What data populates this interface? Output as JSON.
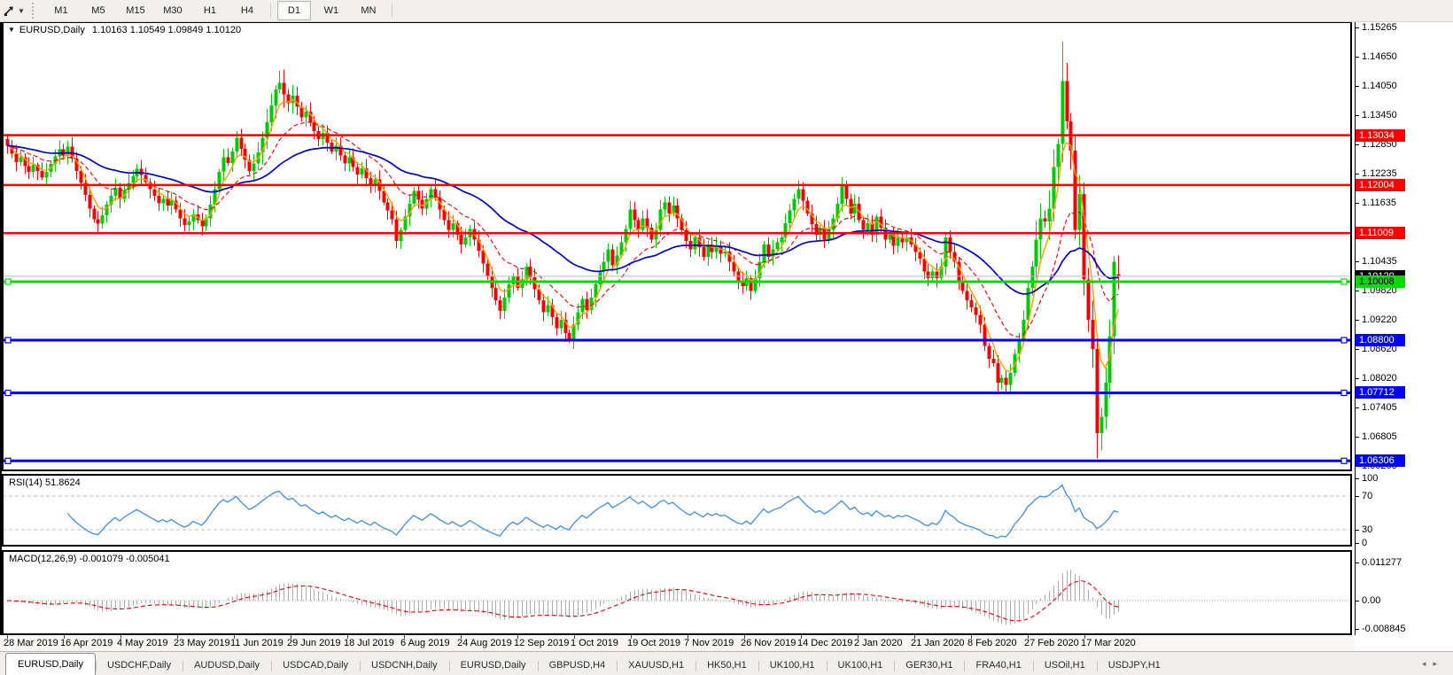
{
  "toolbar": {
    "timeframes": [
      "M1",
      "M5",
      "M15",
      "M30",
      "H1",
      "H4",
      "D1",
      "W1",
      "MN"
    ],
    "active_timeframe": "D1",
    "caret": "▼"
  },
  "chart": {
    "title_marker": "▼",
    "title_symbol": "EURUSD,Daily",
    "title_ohlc": "1.10163 1.10549 1.09849 1.10120"
  },
  "price_axis_labels": [
    1.15265,
    1.1465,
    1.1405,
    1.1345,
    1.1285,
    1.12235,
    1.11635,
    1.10435,
    1.0982,
    1.0922,
    1.0862,
    1.0802,
    1.07405,
    1.06805,
    1.06205
  ],
  "levels": [
    {
      "price": 1.13034,
      "label": "1.13034",
      "color": "#FF0000",
      "text_color": "#FFFFFF",
      "width": 2.5,
      "handles": false
    },
    {
      "price": 1.12004,
      "label": "1.12004",
      "color": "#FF0000",
      "text_color": "#FFFFFF",
      "width": 2.5,
      "handles": false
    },
    {
      "price": 1.11009,
      "label": "1.11009",
      "color": "#FF0000",
      "text_color": "#FFFFFF",
      "width": 2.5,
      "handles": false
    },
    {
      "price": 1.10008,
      "label": "1.10008",
      "color": "#00DC00",
      "text_color": "#000000",
      "width": 3,
      "handles": true
    },
    {
      "price": 1.088,
      "label": "1.08800",
      "color": "#0000FF",
      "text_color": "#FFFFFF",
      "width": 3,
      "handles": true
    },
    {
      "price": 1.07712,
      "label": "1.07712",
      "color": "#0000FF",
      "text_color": "#FFFFFF",
      "width": 3,
      "handles": true
    },
    {
      "price": 1.06306,
      "label": "1.06306",
      "color": "#0000FF",
      "text_color": "#FFFFFF",
      "width": 3,
      "handles": true
    }
  ],
  "current_price": {
    "price": 1.1012,
    "label": "1.10120",
    "line_color": "#B8B8B8",
    "bg": "#000000",
    "text_color": "#FFFFFF"
  },
  "chart_data": {
    "type": "candlestick",
    "symbol": "EURUSD",
    "period": "Daily",
    "x_axis_dates": [
      "28 Mar 2019",
      "16 Apr 2019",
      "4 May 2019",
      "23 May 2019",
      "11 Jun 2019",
      "29 Jun 2019",
      "18 Jul 2019",
      "6 Aug 2019",
      "24 Aug 2019",
      "12 Sep 2019",
      "1 Oct 2019",
      "19 Oct 2019",
      "7 Nov 2019",
      "26 Nov 2019",
      "14 Dec 2019",
      "2 Jan 2020",
      "21 Jan 2020",
      "8 Feb 2020",
      "27 Feb 2020",
      "17 Mar 2020"
    ],
    "y_range": [
      1.06205,
      1.15265
    ],
    "first_open": 1.1295,
    "closes": [
      1.1282,
      1.1265,
      1.1248,
      1.1258,
      1.124,
      1.1228,
      1.1242,
      1.123,
      1.1216,
      1.1228,
      1.1244,
      1.126,
      1.1274,
      1.1262,
      1.128,
      1.1255,
      1.123,
      1.1205,
      1.118,
      1.1152,
      1.113,
      1.1121,
      1.1138,
      1.116,
      1.1178,
      1.1195,
      1.1172,
      1.119,
      1.1205,
      1.1219,
      1.1234,
      1.1221,
      1.1207,
      1.1192,
      1.1178,
      1.1163,
      1.1172,
      1.1158,
      1.1168,
      1.115,
      1.1132,
      1.1118,
      1.1125,
      1.114,
      1.1128,
      1.1115,
      1.1132,
      1.116,
      1.1192,
      1.1228,
      1.1258,
      1.1246,
      1.127,
      1.1298,
      1.1275,
      1.1252,
      1.123,
      1.1245,
      1.1268,
      1.1298,
      1.133,
      1.1365,
      1.1398,
      1.1412,
      1.1388,
      1.137,
      1.1385,
      1.1362,
      1.134,
      1.1352,
      1.133,
      1.1312,
      1.1295,
      1.1308,
      1.1288,
      1.127,
      1.1282,
      1.1262,
      1.1245,
      1.1258,
      1.1238,
      1.1222,
      1.1235,
      1.1215,
      1.1198,
      1.1212,
      1.1188,
      1.1165,
      1.1148,
      1.113,
      1.1085,
      1.1108,
      1.1135,
      1.1162,
      1.1188,
      1.117,
      1.1152,
      1.1172,
      1.1192,
      1.1175,
      1.115,
      1.1128,
      1.1108,
      1.1122,
      1.1098,
      1.1078,
      1.1092,
      1.111,
      1.1088,
      1.1065,
      1.1038,
      1.1012,
      1.0988,
      1.0962,
      1.094,
      1.0968,
      1.0995,
      1.1012,
      1.0988,
      1.1005,
      1.1032,
      1.101,
      1.0985,
      1.0962,
      1.0938,
      1.0952,
      1.0928,
      1.0905,
      1.0922,
      1.0895,
      1.088,
      1.0912,
      1.0938,
      1.0965,
      1.0942,
      1.0968,
      1.0995,
      1.1022,
      1.1042,
      1.1068,
      1.1035,
      1.1055,
      1.1082,
      1.111,
      1.115,
      1.1128,
      1.1108,
      1.1132,
      1.1112,
      1.1088,
      1.1108,
      1.115,
      1.1165,
      1.1142,
      1.1158,
      1.1132,
      1.1108,
      1.1085,
      1.1068,
      1.1092,
      1.1072,
      1.1052,
      1.1078,
      1.1062,
      1.1075,
      1.1058,
      1.1063,
      1.1042,
      1.1022,
      1.1002,
      1.0992,
      1.1008,
      1.0982,
      1.1008,
      1.1042,
      1.1078,
      1.1052,
      1.1068,
      1.1082,
      1.1092,
      1.1122,
      1.1148,
      1.1172,
      1.1192,
      1.1168,
      1.1142,
      1.112,
      1.1098,
      1.1112,
      1.1088,
      1.1108,
      1.1132,
      1.1162,
      1.1198,
      1.1172,
      1.1142,
      1.1162,
      1.1128,
      1.1108,
      1.1122,
      1.1098,
      1.1135,
      1.1112,
      1.1088,
      1.1098,
      1.1075,
      1.1092,
      1.1082,
      1.1092,
      1.1078,
      1.1062,
      1.1048,
      1.1022,
      1.1008,
      1.1022,
      1.1008,
      1.1032,
      1.1092,
      1.1062,
      1.1042,
      1.1002,
      1.0982,
      1.0962,
      1.0948,
      1.0932,
      1.0912,
      1.0868,
      1.0842,
      1.0832,
      1.0792,
      1.0802,
      1.0788,
      1.0812,
      1.0852,
      1.0882,
      1.0922,
      1.0988,
      1.1032,
      1.1088,
      1.1132,
      1.1125,
      1.1152,
      1.1238,
      1.1285,
      1.1415,
      1.1332,
      1.1272,
      1.1108,
      1.1182,
      1.1005,
      1.0922,
      1.0862,
      1.0688,
      1.0722,
      1.0792,
      1.0888,
      1.1042,
      1.1012
    ],
    "overrides": {
      "244": {
        "high": 1.1497
      },
      "252": {
        "low": 1.0636
      },
      "253": {
        "low": 1.0652
      },
      "257": {
        "open": 1.10163,
        "high": 1.10549,
        "low": 1.09849,
        "close": 1.1012
      }
    },
    "up_color": "#00C800",
    "down_color": "#F00000",
    "series": [
      {
        "name": "ma-fast",
        "period": 5,
        "color": "#FFA000",
        "style": "solid"
      },
      {
        "name": "ma-mid",
        "period": 16,
        "color": "#E00000",
        "style": "dashed"
      },
      {
        "name": "ma-slow",
        "period": 45,
        "color": "#0000C0",
        "style": "solid"
      }
    ]
  },
  "rsi_panel": {
    "label": "RSI(14)",
    "value": "51.8624",
    "period": 14,
    "line_color": "#3E8EDE",
    "level_lines": [
      70,
      30
    ],
    "axis_labels": [
      "100",
      "70",
      "30",
      "0"
    ]
  },
  "macd_panel": {
    "label": "MACD(12,26,9)",
    "values": "-0.001079 -0.005041",
    "fast": 12,
    "slow": 26,
    "signal": 9,
    "hist_color": "#ACACAC",
    "signal_color": "#E00000",
    "axis_labels": [
      "0.011277",
      "0.00",
      "-0.008845"
    ]
  },
  "tab_bar": {
    "tabs": [
      {
        "label": "EURUSD,Daily",
        "active": true
      },
      {
        "label": "USDCHF,Daily",
        "active": false
      },
      {
        "label": "AUDUSD,Daily",
        "active": false
      },
      {
        "label": "USDCAD,Daily",
        "active": false
      },
      {
        "label": "USDCNH,Daily",
        "active": false
      },
      {
        "label": "EURUSD,Daily",
        "active": false
      },
      {
        "label": "GBPUSD,H4",
        "active": false
      },
      {
        "label": "XAUUSD,H1",
        "active": false
      },
      {
        "label": "HK50,H1",
        "active": false
      },
      {
        "label": "UK100,H1",
        "active": false
      },
      {
        "label": "UK100,H1",
        "active": false
      },
      {
        "label": "GER30,H1",
        "active": false
      },
      {
        "label": "FRA40,H1",
        "active": false
      },
      {
        "label": "USOil,H1",
        "active": false
      },
      {
        "label": "USDJPY,H1",
        "active": false
      }
    ],
    "scroll_left": "◂",
    "scroll_right": "▸"
  }
}
